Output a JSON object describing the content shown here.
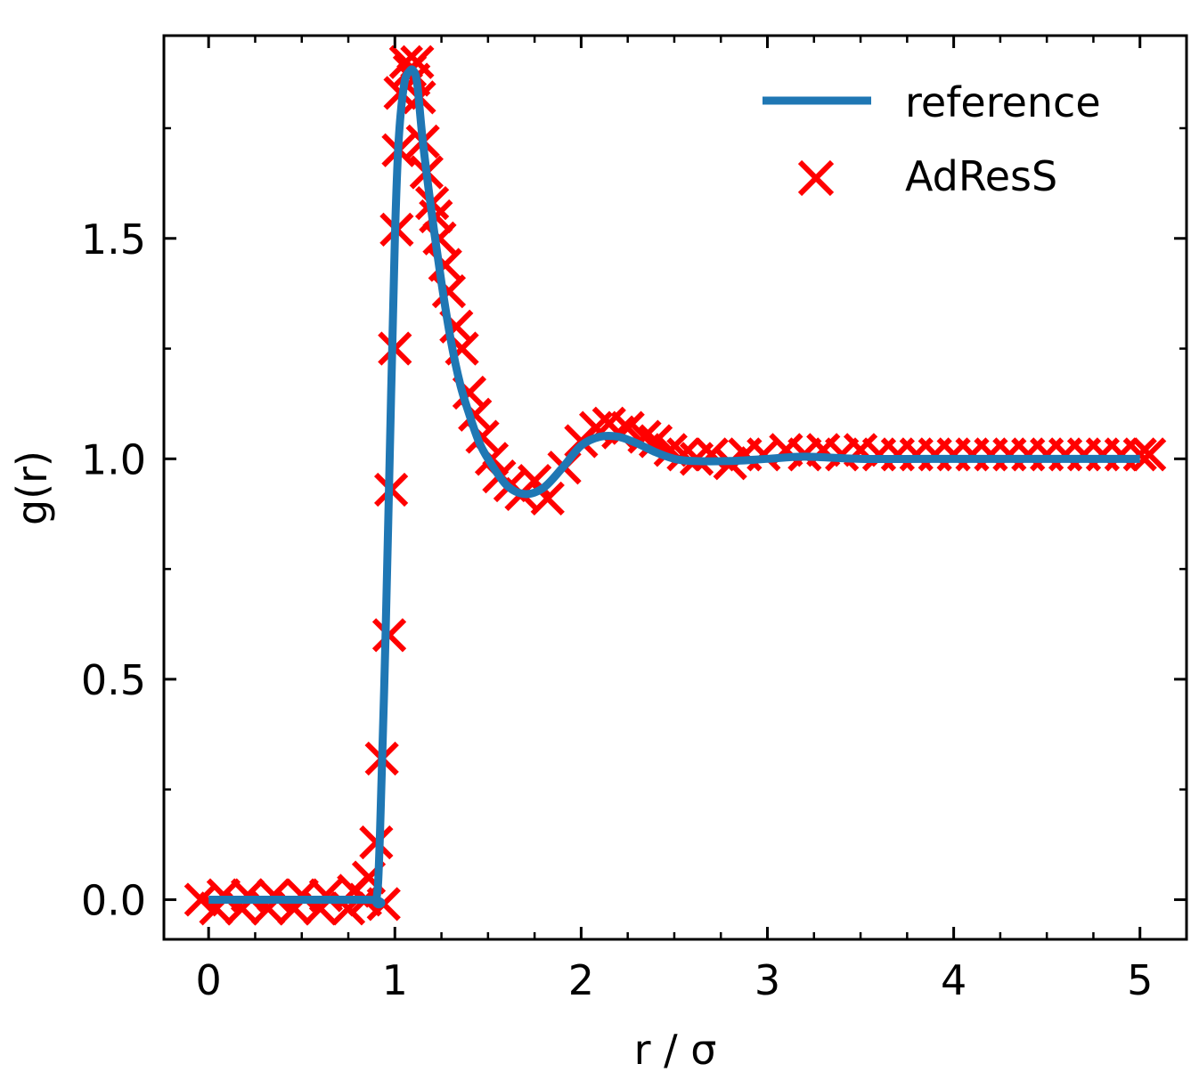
{
  "chart_data": {
    "type": "line",
    "title": "",
    "xlabel": "r / σ",
    "ylabel": "g(r)",
    "xlim": [
      -0.24,
      5.25
    ],
    "ylim": [
      -0.09,
      1.96
    ],
    "xticks": [
      0,
      1,
      2,
      3,
      4,
      5
    ],
    "xtick_labels": [
      "0",
      "1",
      "2",
      "3",
      "4",
      "5"
    ],
    "yticks": [
      0.0,
      0.5,
      1.0,
      1.5
    ],
    "ytick_labels": [
      "0.0",
      "0.5",
      "1.0",
      "1.5"
    ],
    "x_minor_step": 0.25,
    "y_minor_step": 0.25,
    "grid": false,
    "legend": {
      "placement": "top-right",
      "entries": [
        "reference",
        "AdResS"
      ]
    },
    "series": [
      {
        "name": "reference",
        "kind": "line",
        "color": "#1f77b4",
        "x": [
          0.0,
          0.85,
          0.9,
          0.92,
          0.95,
          0.98,
          1.0,
          1.02,
          1.05,
          1.08,
          1.1,
          1.12,
          1.15,
          1.2,
          1.25,
          1.3,
          1.35,
          1.4,
          1.45,
          1.5,
          1.6,
          1.7,
          1.8,
          1.9,
          2.0,
          2.1,
          2.2,
          2.3,
          2.4,
          2.5,
          2.6,
          2.8,
          3.0,
          3.2,
          3.5,
          4.0,
          4.5,
          5.0
        ],
        "y": [
          0.0,
          0.0,
          0.0,
          0.15,
          0.6,
          1.15,
          1.5,
          1.72,
          1.85,
          1.88,
          1.88,
          1.85,
          1.72,
          1.55,
          1.4,
          1.27,
          1.17,
          1.1,
          1.04,
          1.0,
          0.94,
          0.92,
          0.935,
          0.98,
          1.03,
          1.05,
          1.05,
          1.035,
          1.015,
          1.0,
          0.995,
          0.995,
          1.0,
          1.005,
          1.0,
          1.0,
          1.0,
          1.0
        ]
      },
      {
        "name": "AdResS",
        "kind": "scatter",
        "color": "#ff0000",
        "marker": "x",
        "x": [
          -0.04,
          0.04,
          0.08,
          0.18,
          0.21,
          0.32,
          0.35,
          0.46,
          0.5,
          0.6,
          0.63,
          0.75,
          0.78,
          0.84,
          0.86,
          0.9,
          0.94,
          0.93,
          0.97,
          0.98,
          1.0,
          1.01,
          1.02,
          1.03,
          1.06,
          1.08,
          1.1,
          1.12,
          1.13,
          1.15,
          1.17,
          1.2,
          1.22,
          1.24,
          1.27,
          1.29,
          1.33,
          1.36,
          1.4,
          1.43,
          1.47,
          1.52,
          1.56,
          1.62,
          1.68,
          1.75,
          1.82,
          1.91,
          2.0,
          2.08,
          2.15,
          2.2,
          2.25,
          2.34,
          2.4,
          2.48,
          2.55,
          2.62,
          2.7,
          2.8,
          2.88,
          2.98,
          3.1,
          3.2,
          3.3,
          3.4,
          3.5,
          3.6,
          3.7,
          3.8,
          3.9,
          4.0,
          4.1,
          4.2,
          4.3,
          4.4,
          4.5,
          4.6,
          4.7,
          4.8,
          4.9,
          5.0,
          5.05
        ],
        "y": [
          0.0,
          -0.02,
          0.01,
          -0.02,
          0.01,
          -0.02,
          0.01,
          -0.02,
          0.01,
          -0.02,
          0.01,
          -0.02,
          0.02,
          0.0,
          0.05,
          0.13,
          -0.01,
          0.32,
          0.6,
          0.93,
          1.25,
          1.52,
          1.7,
          1.83,
          1.9,
          1.88,
          1.86,
          1.9,
          1.82,
          1.72,
          1.65,
          1.58,
          1.55,
          1.5,
          1.44,
          1.38,
          1.3,
          1.25,
          1.15,
          1.1,
          1.05,
          1.0,
          0.96,
          0.94,
          0.92,
          0.95,
          0.91,
          0.98,
          1.04,
          1.07,
          1.08,
          1.06,
          1.07,
          1.05,
          1.04,
          1.02,
          1.01,
          1.0,
          1.01,
          0.99,
          1.01,
          1.01,
          1.02,
          1.01,
          1.02,
          1.01,
          1.02,
          1.01,
          1.01,
          1.01,
          1.01,
          1.01,
          1.01,
          1.01,
          1.01,
          1.01,
          1.01,
          1.01,
          1.01,
          1.01,
          1.01,
          1.01,
          1.01
        ]
      }
    ]
  }
}
